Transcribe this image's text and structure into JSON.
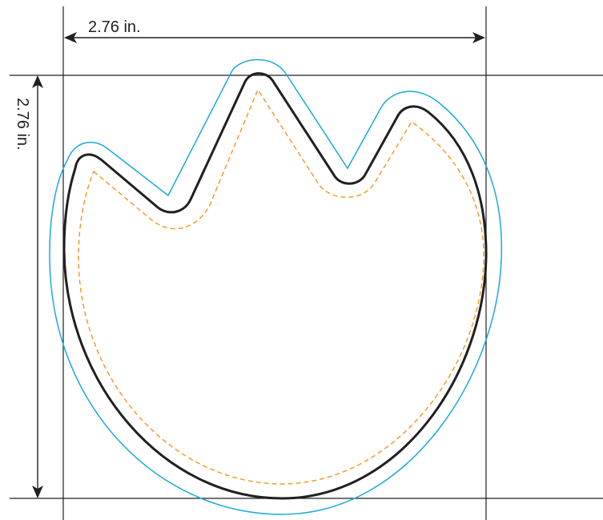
{
  "dimensions": {
    "width_label": "2.76 in.",
    "height_label": "2.76 in."
  },
  "colors": {
    "guide_lines": "#231f20",
    "cut_line": "#231f20",
    "bleed_line": "#1ba9d8",
    "safe_line": "#f7941d"
  }
}
